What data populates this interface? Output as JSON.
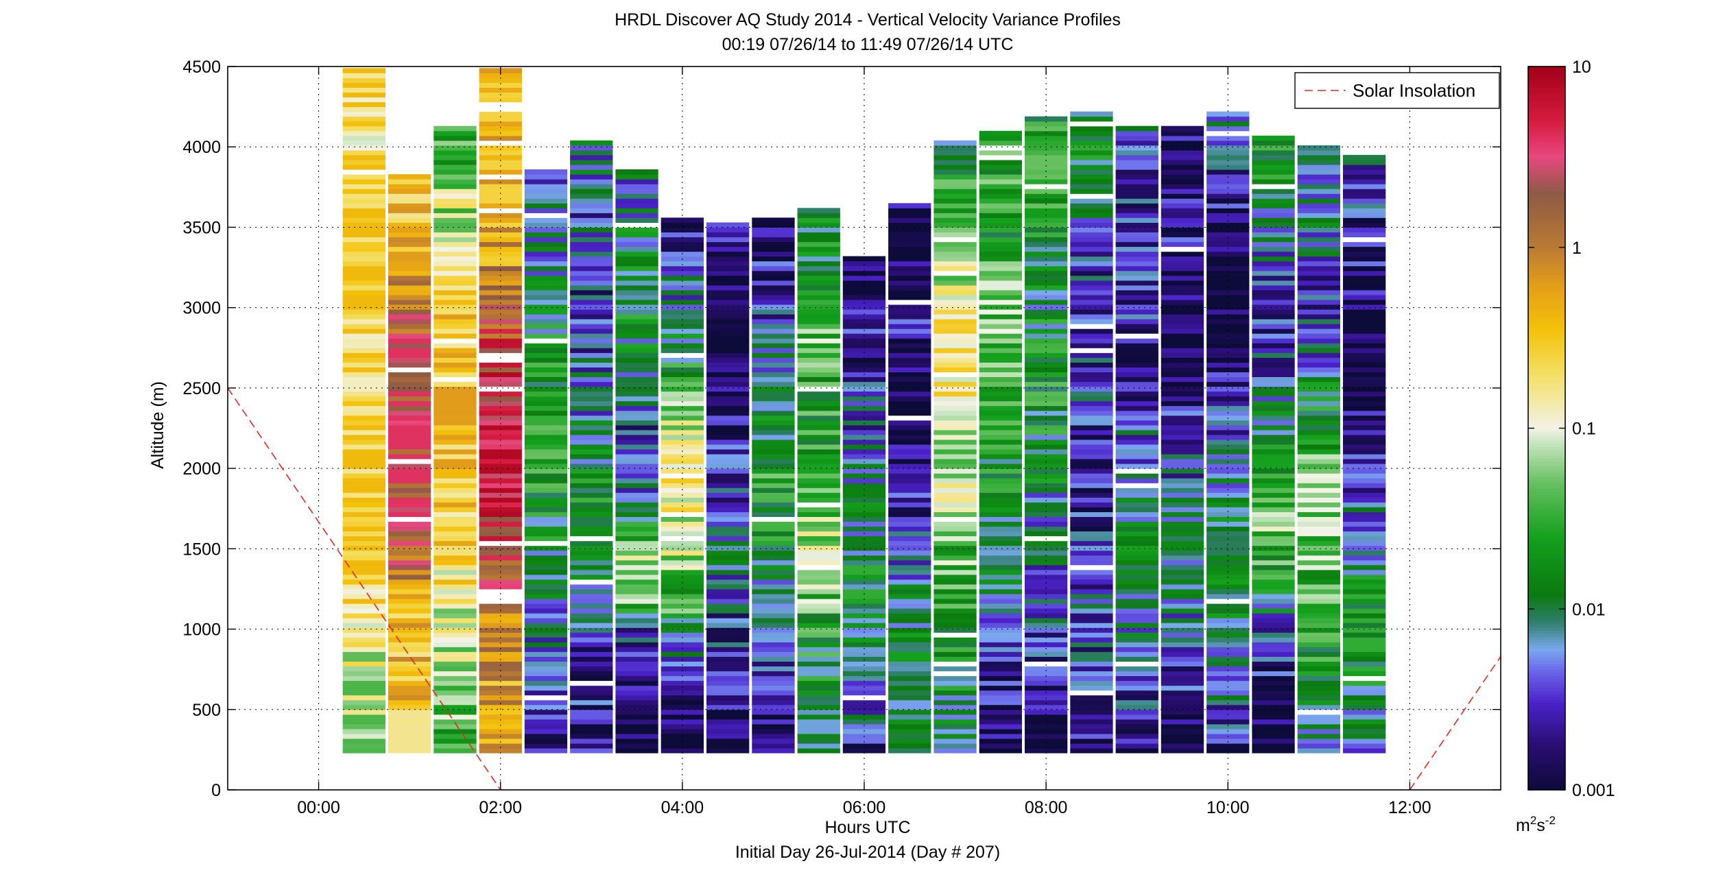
{
  "title_line1": "HRDL Discover AQ Study 2014 - Vertical Velocity Variance Profiles",
  "title_line2": "00:19 07/26/14 to 11:49 07/26/14  UTC",
  "xlabel": "Hours UTC",
  "xlabel_sub": "Initial Day 26-Jul-2014 (Day # 207)",
  "ylabel": "Altitude (m)",
  "legend_label": "Solar Insolation",
  "colorbar_unit": {
    "base": "m",
    "sup1": "2",
    "mid": "s",
    "sup2": "-2"
  },
  "colors": {
    "background": "#ffffff",
    "axis": "#000000",
    "grid": "#000000",
    "solar_line": "#e8251d",
    "nodata": "#ffffff"
  },
  "chart_data": {
    "type": "heatmap",
    "xlim": [
      -1.0,
      13.0
    ],
    "ylim": [
      0,
      4500
    ],
    "x_unit": "hours UTC",
    "y_unit": "m",
    "x_ticks": [
      0,
      2,
      4,
      6,
      8,
      10,
      12
    ],
    "x_tick_labels": [
      "00:00",
      "02:00",
      "04:00",
      "06:00",
      "08:00",
      "10:00",
      "12:00"
    ],
    "y_ticks": [
      0,
      500,
      1000,
      1500,
      2000,
      2500,
      3000,
      3500,
      4000,
      4500
    ],
    "y_tick_labels": [
      "0",
      "500",
      "1000",
      "1500",
      "2000",
      "2500",
      "3000",
      "3500",
      "4000",
      "4500"
    ],
    "grid": true,
    "legend_position": "top-right",
    "color_scale": "log",
    "clim": [
      0.001,
      10
    ],
    "colorbar_ticks": [
      0.001,
      0.01,
      0.1,
      1,
      10
    ],
    "colorbar_tick_labels": [
      "0.001",
      "0.01",
      "0.1",
      "1",
      "10"
    ],
    "colorbar_stops": [
      {
        "v": 0.001,
        "c": "#0d0b3a"
      },
      {
        "v": 0.0018,
        "c": "#2a0e74"
      },
      {
        "v": 0.003,
        "c": "#4a22c8"
      },
      {
        "v": 0.0045,
        "c": "#6a64e8"
      },
      {
        "v": 0.006,
        "c": "#7aa8ee"
      },
      {
        "v": 0.0085,
        "c": "#2f7f6c"
      },
      {
        "v": 0.012,
        "c": "#0b7a10"
      },
      {
        "v": 0.025,
        "c": "#14a01e"
      },
      {
        "v": 0.05,
        "c": "#66c060"
      },
      {
        "v": 0.08,
        "c": "#c0e2b8"
      },
      {
        "v": 0.1,
        "c": "#f2f2e6"
      },
      {
        "v": 0.2,
        "c": "#f4df64"
      },
      {
        "v": 0.35,
        "c": "#f4c20a"
      },
      {
        "v": 0.6,
        "c": "#e5a018"
      },
      {
        "v": 1.0,
        "c": "#ba7a32"
      },
      {
        "v": 2.0,
        "c": "#8e5a46"
      },
      {
        "v": 3.2,
        "c": "#e84880"
      },
      {
        "v": 5.0,
        "c": "#d61c40"
      },
      {
        "v": 10,
        "c": "#a30018"
      }
    ],
    "profiles": [
      {
        "time": 0.5,
        "top": 4500,
        "low_log": -1.4,
        "high_log": -0.4,
        "variance_log": [
          -1.3,
          -1.2,
          -1.1,
          -1.0,
          -0.8,
          -0.6,
          -0.5,
          -0.45,
          -0.4,
          -0.45,
          -0.5,
          -0.5,
          -0.6,
          -0.55,
          -0.5,
          -0.45,
          -0.4,
          -0.5,
          -0.6,
          -0.7,
          -0.6,
          -0.5
        ]
      },
      {
        "time": 1.0,
        "top": 3830,
        "low_log": -0.8,
        "high_log": 0.6,
        "variance_log": [
          -1.0,
          -0.7,
          -0.5,
          -0.5,
          -0.4,
          -0.3,
          0.2,
          0.4,
          0.5,
          0.45,
          0.5,
          0.55,
          0.5,
          0.45,
          0.3,
          0.1,
          -0.1,
          -0.3,
          -0.5,
          -0.6
        ]
      },
      {
        "time": 1.5,
        "top": 4150,
        "low_log": -1.8,
        "high_log": -0.2,
        "variance_log": [
          -1.6,
          -1.4,
          -1.2,
          -1.0,
          -0.9,
          -0.8,
          -0.6,
          -0.5,
          -0.4,
          -0.4,
          -0.3,
          -0.3,
          -0.4,
          -0.5,
          -0.6,
          -0.8,
          -1.0,
          -1.2,
          -1.5,
          -1.7
        ]
      },
      {
        "time": 2.0,
        "top": 4500,
        "low_log": -0.6,
        "high_log": 0.9,
        "variance_log": [
          -0.4,
          -0.3,
          -0.3,
          -0.2,
          -0.1,
          0.2,
          0.4,
          0.6,
          0.7,
          0.85,
          0.9,
          0.7,
          0.5,
          0.3,
          0.1,
          -0.1,
          -0.3,
          -0.4,
          -0.5,
          -0.4,
          -0.5,
          -0.6
        ]
      },
      {
        "time": 2.5,
        "top": 3870,
        "low_log": -3.0,
        "high_log": -1.3,
        "variance_log": [
          -2.8,
          -2.7,
          -2.5,
          -2.4,
          -2.3,
          -2.1,
          -2.0,
          -1.9,
          -1.8,
          -1.7,
          -1.6,
          -1.6,
          -1.7,
          -1.8,
          -1.9,
          -2.0,
          -2.1,
          -2.2,
          -2.3,
          -2.4
        ]
      },
      {
        "time": 3.0,
        "top": 4060,
        "low_log": -3.0,
        "high_log": -1.0,
        "variance_log": [
          -2.8,
          -2.7,
          -2.6,
          -2.5,
          -2.4,
          -2.2,
          -2.0,
          -1.8,
          -1.9,
          -2.0,
          -2.1,
          -2.2,
          -2.3,
          -2.4,
          -2.5,
          -2.5,
          -2.4,
          -2.3,
          -2.2,
          -2.1
        ]
      },
      {
        "time": 3.5,
        "top": 3880,
        "low_log": -3.0,
        "high_log": -0.6,
        "variance_log": [
          -3.0,
          -2.9,
          -2.8,
          -2.7,
          -2.4,
          -1.2,
          -1.0,
          -1.5,
          -2.0,
          -2.3,
          -2.5,
          -2.4,
          -2.2,
          -2.0,
          -1.9,
          -1.8,
          -1.9,
          -2.0,
          -2.1,
          -2.2
        ]
      },
      {
        "time": 4.0,
        "top": 3560,
        "low_log": -3.0,
        "high_log": -0.5,
        "variance_log": [
          -3.0,
          -2.9,
          -2.8,
          -2.6,
          -2.0,
          -1.6,
          -1.4,
          -1.2,
          -1.0,
          -0.8,
          -0.7,
          -0.9,
          -1.2,
          -1.5,
          -1.8,
          -2.0,
          -2.2,
          -2.4,
          -2.6,
          -2.7
        ]
      },
      {
        "time": 4.5,
        "top": 3540,
        "low_log": -3.0,
        "high_log": -1.5,
        "variance_log": [
          -2.9,
          -2.8,
          -2.7,
          -2.6,
          -2.5,
          -2.4,
          -2.3,
          -2.2,
          -2.3,
          -2.4,
          -2.5,
          -2.6,
          -2.7,
          -2.8,
          -2.9,
          -3.0,
          -2.9,
          -2.8,
          -2.7,
          -2.6
        ]
      },
      {
        "time": 5.0,
        "top": 3560,
        "low_log": -3.0,
        "high_log": -1.2,
        "variance_log": [
          -2.9,
          -2.8,
          -2.7,
          -2.6,
          -2.5,
          -2.3,
          -2.0,
          -1.8,
          -1.7,
          -1.6,
          -1.7,
          -1.8,
          -1.9,
          -2.0,
          -2.2,
          -2.4,
          -2.5,
          -2.6,
          -2.7,
          -2.8
        ]
      },
      {
        "time": 5.5,
        "top": 3620,
        "low_log": -2.2,
        "high_log": -0.8,
        "variance_log": [
          -2.1,
          -2.0,
          -1.9,
          -1.8,
          -1.7,
          -1.5,
          -1.2,
          -1.0,
          -1.3,
          -1.5,
          -1.6,
          -1.6,
          -1.7,
          -1.5,
          -1.3,
          -1.4,
          -1.6,
          -1.8,
          -1.9,
          -2.0
        ]
      },
      {
        "time": 6.0,
        "top": 3330,
        "low_log": -3.0,
        "high_log": -1.5,
        "variance_log": [
          -2.6,
          -2.4,
          -2.2,
          -2.0,
          -1.9,
          -1.8,
          -1.7,
          -1.8,
          -1.9,
          -2.0,
          -2.1,
          -2.2,
          -2.3,
          -2.4,
          -2.5,
          -2.6,
          -2.7,
          -2.8,
          -2.9,
          -3.0
        ]
      },
      {
        "time": 6.5,
        "top": 3650,
        "low_log": -3.0,
        "high_log": -1.6,
        "variance_log": [
          -2.0,
          -2.0,
          -1.9,
          -1.8,
          -1.9,
          -2.0,
          -2.2,
          -2.4,
          -2.6,
          -2.7,
          -2.8,
          -2.9,
          -3.0,
          -2.9,
          -2.8,
          -2.7,
          -2.8,
          -2.9,
          -3.0,
          -2.9
        ]
      },
      {
        "time": 7.0,
        "top": 4040,
        "low_log": -2.3,
        "high_log": -0.5,
        "variance_log": [
          -2.2,
          -2.0,
          -1.9,
          -1.8,
          -1.7,
          -1.5,
          -1.4,
          -1.3,
          -1.2,
          -1.1,
          -1.0,
          -0.8,
          -0.6,
          -0.7,
          -0.9,
          -1.1,
          -1.3,
          -1.5,
          -1.7,
          -1.9
        ]
      },
      {
        "time": 7.5,
        "top": 4120,
        "low_log": -3.0,
        "high_log": -1.0,
        "variance_log": [
          -2.9,
          -2.8,
          -2.7,
          -2.5,
          -2.3,
          -2.1,
          -2.0,
          -1.9,
          -1.8,
          -1.7,
          -1.6,
          -1.5,
          -1.4,
          -1.3,
          -1.4,
          -1.5,
          -1.6,
          -1.7,
          -1.5,
          -1.3
        ]
      },
      {
        "time": 8.0,
        "top": 4200,
        "low_log": -3.0,
        "high_log": -1.3,
        "variance_log": [
          -3.0,
          -2.9,
          -2.7,
          -2.5,
          -2.4,
          -2.3,
          -2.2,
          -2.1,
          -2.0,
          -1.9,
          -1.8,
          -1.7,
          -1.8,
          -1.9,
          -2.0,
          -1.8,
          -1.6,
          -1.5,
          -1.4,
          -1.6
        ]
      },
      {
        "time": 8.5,
        "top": 4220,
        "low_log": -3.0,
        "high_log": -1.5,
        "variance_log": [
          -2.8,
          -2.6,
          -2.5,
          -2.4,
          -2.3,
          -2.4,
          -2.5,
          -2.6,
          -2.7,
          -2.6,
          -2.5,
          -2.4,
          -2.5,
          -2.6,
          -2.5,
          -2.3,
          -2.1,
          -1.9,
          -1.8,
          -1.9
        ]
      },
      {
        "time": 9.0,
        "top": 4140,
        "low_log": -3.0,
        "high_log": -1.6,
        "variance_log": [
          -2.7,
          -2.6,
          -2.4,
          -2.2,
          -2.0,
          -1.9,
          -1.8,
          -1.9,
          -2.0,
          -2.2,
          -2.4,
          -2.6,
          -2.7,
          -2.6,
          -2.5,
          -2.4,
          -2.5,
          -2.6,
          -2.4,
          -2.2
        ]
      },
      {
        "time": 9.5,
        "top": 4140,
        "low_log": -3.0,
        "high_log": -1.8,
        "variance_log": [
          -2.9,
          -2.8,
          -2.6,
          -2.4,
          -2.2,
          -2.0,
          -1.9,
          -2.0,
          -2.2,
          -2.4,
          -2.6,
          -2.8,
          -2.9,
          -3.0,
          -2.9,
          -2.8,
          -2.7,
          -2.8,
          -2.9,
          -2.8
        ]
      },
      {
        "time": 10.0,
        "top": 4220,
        "low_log": -3.0,
        "high_log": -1.6,
        "variance_log": [
          -2.6,
          -2.4,
          -2.2,
          -2.0,
          -1.9,
          -1.8,
          -1.9,
          -2.0,
          -2.1,
          -2.3,
          -2.5,
          -2.7,
          -2.9,
          -3.0,
          -3.0,
          -2.9,
          -2.8,
          -2.6,
          -2.4,
          -2.2
        ]
      },
      {
        "time": 10.5,
        "top": 4080,
        "low_log": -3.0,
        "high_log": -0.9,
        "variance_log": [
          -3.0,
          -2.9,
          -2.8,
          -2.5,
          -2.2,
          -1.8,
          -1.5,
          -1.3,
          -1.6,
          -1.9,
          -2.0,
          -2.2,
          -2.4,
          -2.6,
          -2.5,
          -2.3,
          -2.1,
          -1.9,
          -1.7,
          -1.6
        ]
      },
      {
        "time": 11.0,
        "top": 4020,
        "low_log": -3.0,
        "high_log": -1.0,
        "variance_log": [
          -2.1,
          -1.9,
          -1.8,
          -1.7,
          -1.6,
          -1.5,
          -1.4,
          -1.2,
          -1.1,
          -1.3,
          -1.6,
          -1.9,
          -2.1,
          -2.3,
          -2.5,
          -2.4,
          -2.2,
          -2.0,
          -2.1,
          -2.2
        ]
      },
      {
        "time": 11.5,
        "top": 3960,
        "low_log": -3.0,
        "high_log": -1.5,
        "variance_log": [
          -2.2,
          -2.0,
          -1.9,
          -1.7,
          -1.6,
          -1.8,
          -2.0,
          -2.2,
          -2.4,
          -2.6,
          -2.8,
          -2.9,
          -3.0,
          -3.0,
          -2.9,
          -2.8,
          -2.7,
          -2.6,
          -2.5,
          -2.4
        ]
      }
    ],
    "solar_insolation": {
      "name": "Solar Insolation",
      "segments": [
        {
          "x": [
            -1.0,
            2.0
          ],
          "y": [
            2500,
            0
          ]
        },
        {
          "x": [
            12.0,
            13.0
          ],
          "y": [
            0,
            830
          ]
        }
      ]
    }
  }
}
